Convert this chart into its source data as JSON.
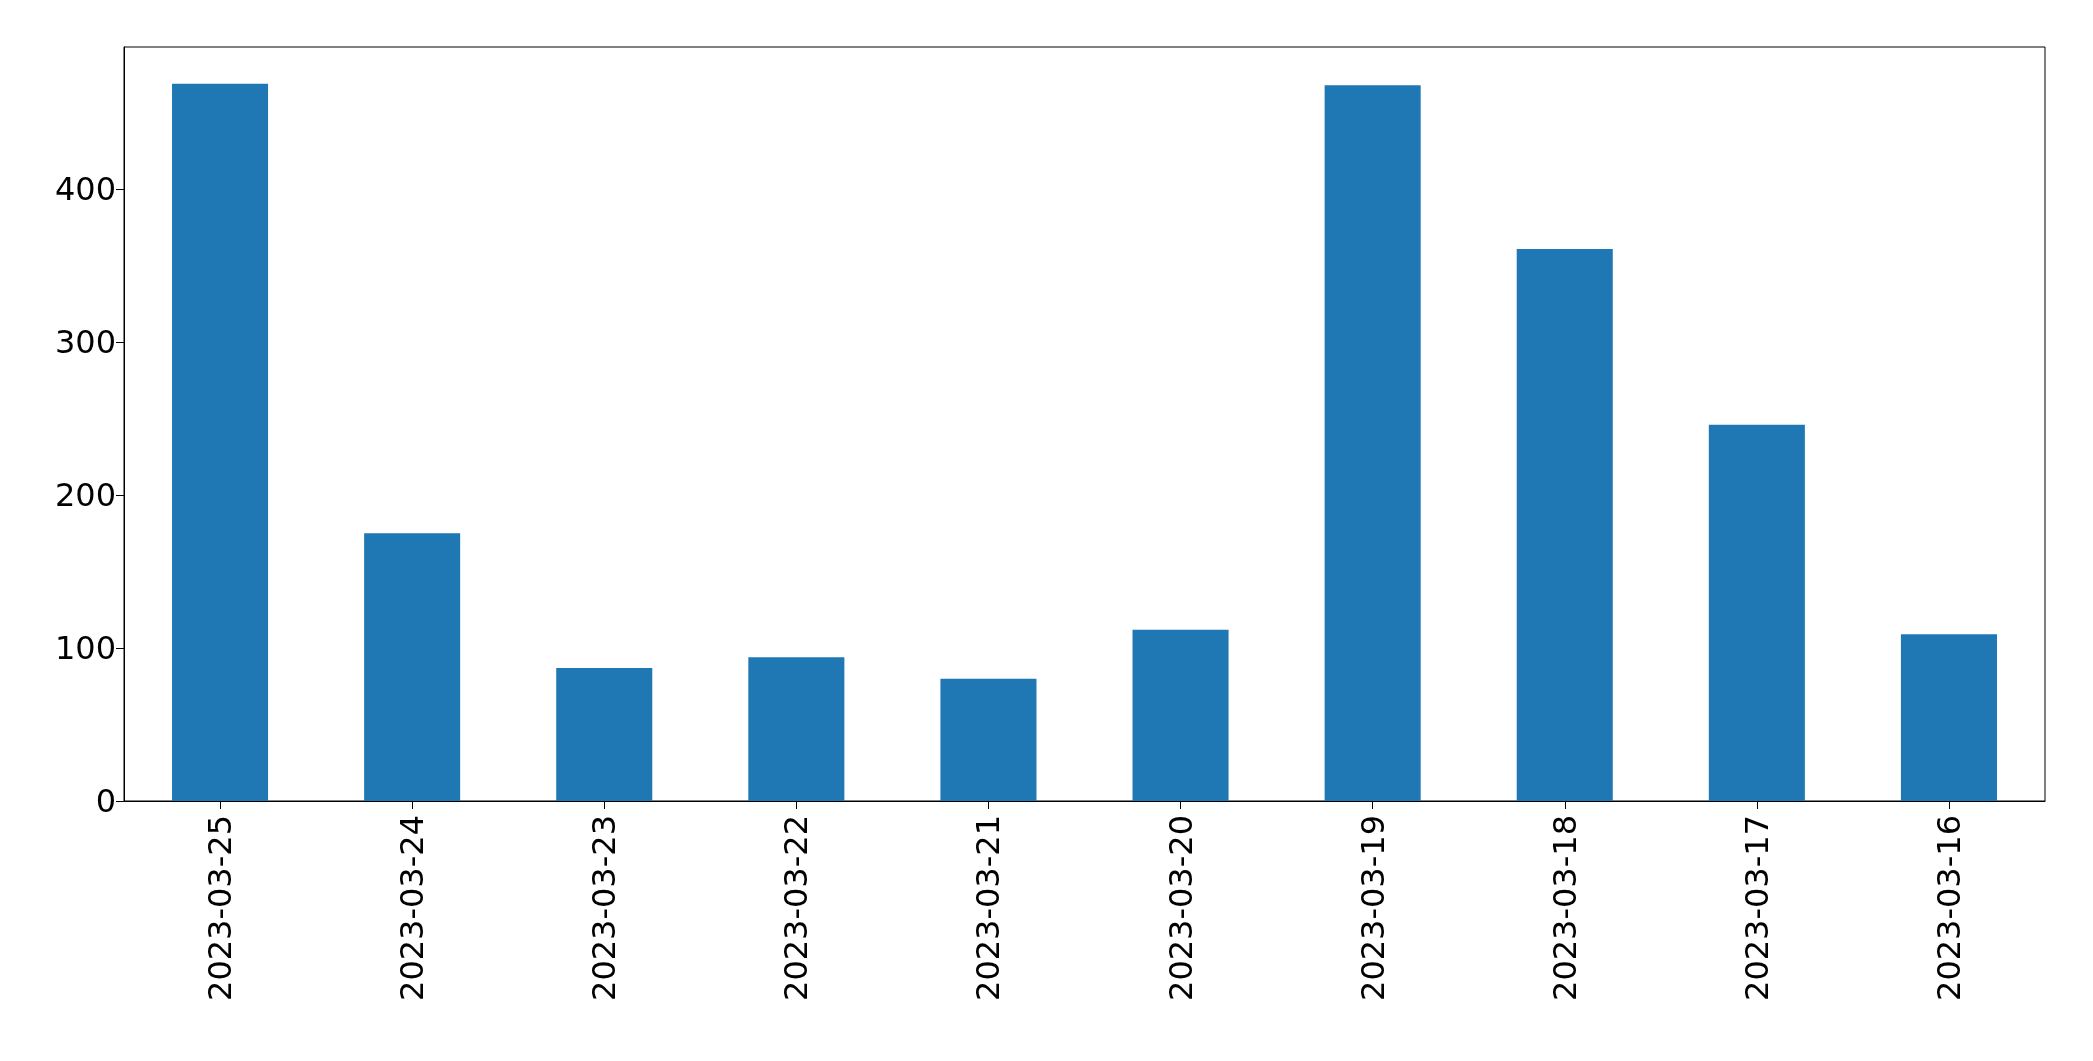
{
  "chart_data": {
    "type": "bar",
    "categories": [
      "2023-03-25",
      "2023-03-24",
      "2023-03-23",
      "2023-03-22",
      "2023-03-21",
      "2023-03-20",
      "2023-03-19",
      "2023-03-18",
      "2023-03-17",
      "2023-03-16"
    ],
    "values": [
      469,
      175,
      87,
      94,
      80,
      112,
      468,
      361,
      246,
      109
    ],
    "color": "#1f77b4",
    "ylim": [
      0,
      493
    ],
    "yticks": [
      0,
      100,
      200,
      300,
      400
    ],
    "grid": false
  }
}
